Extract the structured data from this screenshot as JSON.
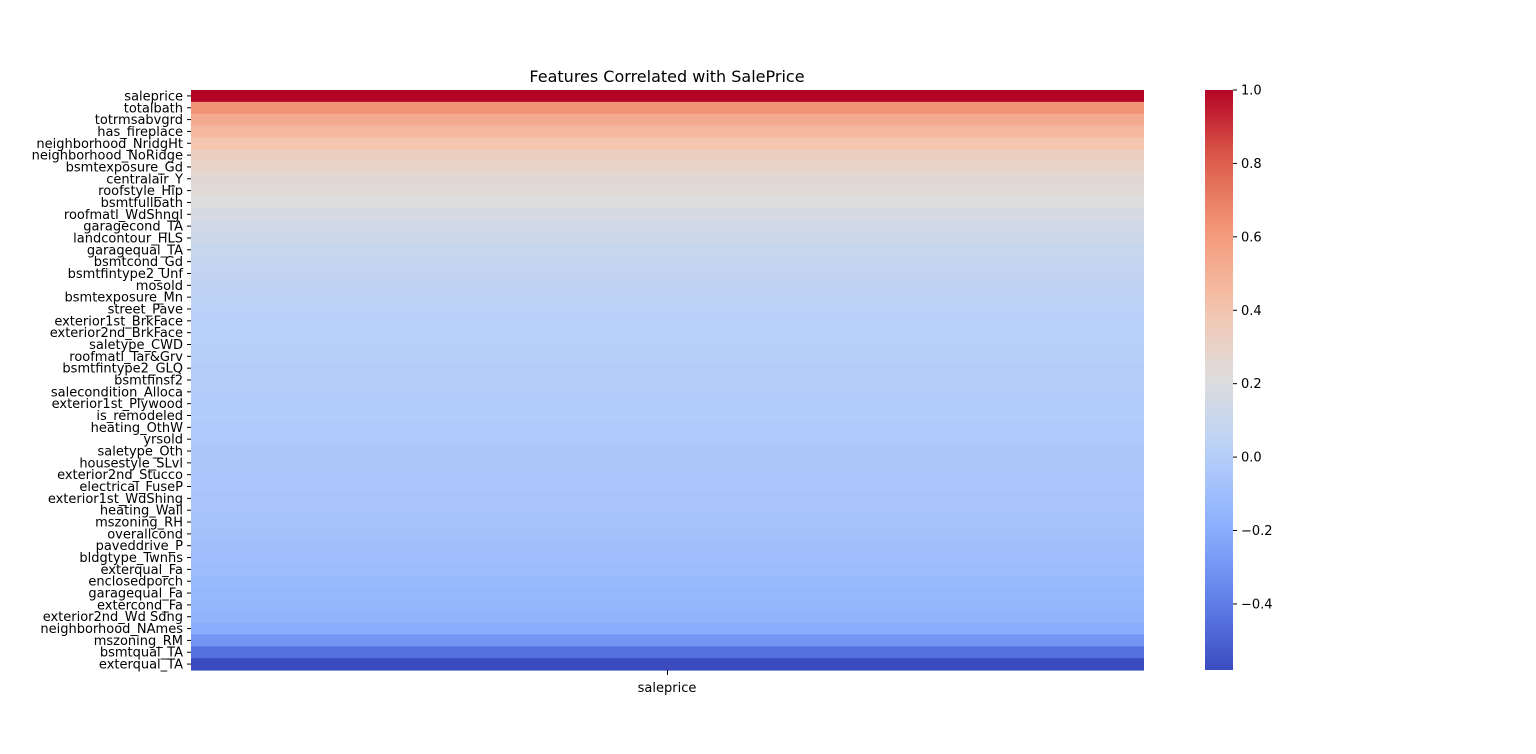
{
  "chart_data": {
    "type": "heatmap",
    "title": "Features Correlated with SalePrice",
    "column_label": "saleprice",
    "colormap": "coolwarm",
    "vmin": -0.58,
    "vmax": 1.0,
    "colorbar_ticks": [
      "1.0",
      "0.8",
      "0.6",
      "0.4",
      "0.2",
      "0.0",
      "−0.2",
      "−0.4"
    ],
    "colorbar_tick_values": [
      1.0,
      0.8,
      0.6,
      0.4,
      0.2,
      0.0,
      -0.2,
      -0.4
    ],
    "visible_row_labels": [
      "saleprice",
      "totalbath",
      "totrmsabvgrd",
      "has_fireplace",
      "neighborhood_NridgHt",
      "neighborhood_NoRidge",
      "bsmtexposure_Gd",
      "centralair_Y",
      "roofstyle_Hip",
      "bsmtfullbath",
      "roofmatl_WdShngl",
      "garagecond_TA",
      "landcontour_HLS",
      "garagequal_TA",
      "bsmtcond_Gd",
      "bsmtfintype2_Unf",
      "mosold",
      "bsmtexposure_Mn",
      "street_Pave",
      "exterior1st_BrkFace",
      "exterior2nd_BrkFace",
      "saletype_CWD",
      "roofmatl_Tar&Grv",
      "bsmtfintype2_GLQ",
      "bsmtfinsf2",
      "salecondition_Alloca",
      "exterior1st_Plywood",
      "is_remodeled",
      "heating_OthW",
      "yrsold",
      "saletype_Oth",
      "housestyle_SLvl",
      "exterior2nd_Stucco",
      "electrical_FuseP",
      "exterior1st_WdShing",
      "heating_Wall",
      "mszoning_RH",
      "overallcond",
      "paveddrive_P",
      "bldgtype_Twnhs",
      "exterqual_Fa",
      "enclosedporch",
      "garagequal_Fa",
      "extercond_Fa",
      "exterior2nd_Wd Sdng",
      "neighborhood_NAmes",
      "mszoning_RM",
      "bsmtqual_TA",
      "exterqual_TA"
    ],
    "row_values": [
      1.0,
      0.63,
      0.53,
      0.47,
      0.4,
      0.33,
      0.29,
      0.25,
      0.23,
      0.21,
      0.17,
      0.14,
      0.12,
      0.1,
      0.08,
      0.07,
      0.05,
      0.04,
      0.03,
      0.02,
      0.02,
      0.01,
      0.01,
      0.0,
      -0.01,
      -0.01,
      -0.02,
      -0.02,
      -0.03,
      -0.03,
      -0.04,
      -0.04,
      -0.05,
      -0.05,
      -0.06,
      -0.06,
      -0.07,
      -0.08,
      -0.09,
      -0.1,
      -0.11,
      -0.13,
      -0.14,
      -0.15,
      -0.16,
      -0.2,
      -0.3,
      -0.45,
      -0.58
    ]
  }
}
